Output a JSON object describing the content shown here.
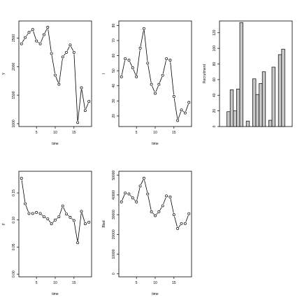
{
  "chart_data": [
    {
      "type": "line",
      "xlabel": "time",
      "ylabel": "Y",
      "x": [
        1,
        2,
        3,
        4,
        5,
        6,
        7,
        8,
        9,
        10,
        11,
        12,
        13,
        14,
        15,
        16,
        17,
        18,
        19
      ],
      "xlim": [
        0.3,
        19.7
      ],
      "xticks": [
        5,
        10,
        15
      ],
      "ylim": [
        950,
        2800
      ],
      "yticks": [
        1000,
        1500,
        2000,
        2500
      ],
      "series": [
        {
          "values": [
            2400,
            2510,
            2600,
            2650,
            2450,
            2400,
            2560,
            2690,
            2230,
            1850,
            1690,
            2170,
            2250,
            2380,
            2250,
            1020,
            1630,
            1230,
            1390
          ]
        }
      ]
    },
    {
      "type": "line",
      "xlabel": "time",
      "ylabel": "I",
      "x": [
        1,
        2,
        3,
        4,
        5,
        6,
        7,
        8,
        9,
        10,
        11,
        12,
        13,
        14,
        15,
        16,
        17,
        18,
        19
      ],
      "xlim": [
        0.3,
        19.7
      ],
      "xticks": [
        5,
        10,
        15
      ],
      "ylim": [
        13,
        83
      ],
      "yticks": [
        20,
        30,
        40,
        50,
        60,
        70,
        80
      ],
      "series": [
        {
          "values": [
            46,
            58,
            57,
            52,
            46,
            65,
            78,
            55,
            41,
            35,
            41,
            47,
            58,
            57,
            33,
            17,
            24,
            22,
            29
          ]
        }
      ]
    },
    {
      "type": "bar",
      "ylabel": "Recruitment",
      "ylim": [
        0,
        135
      ],
      "yticks": [
        0,
        20,
        40,
        60,
        80,
        100,
        120
      ],
      "groups": [
        [
          19,
          47,
          20,
          48,
          133
        ],
        [
          7
        ],
        [
          61,
          41,
          55,
          70
        ],
        [
          8,
          76
        ],
        [
          92,
          99
        ]
      ]
    },
    {
      "type": "line",
      "xlabel": "time",
      "ylabel": "F",
      "x": [
        1,
        2,
        3,
        4,
        5,
        6,
        7,
        8,
        9,
        10,
        11,
        12,
        13,
        14,
        15,
        16,
        17,
        18,
        19
      ],
      "xlim": [
        0.3,
        19.7
      ],
      "xticks": [
        5,
        10,
        15
      ],
      "ylim": [
        -0.005,
        0.19
      ],
      "yticks": [
        0.0,
        0.05,
        0.1,
        0.15
      ],
      "ytick_labels": [
        "0.00",
        "0.05",
        "0.10",
        "0.15"
      ],
      "series": [
        {
          "values": [
            0.177,
            0.13,
            0.112,
            0.112,
            0.114,
            0.112,
            0.106,
            0.102,
            0.093,
            0.1,
            0.106,
            0.126,
            0.111,
            0.105,
            0.099,
            0.058,
            0.116,
            0.093,
            0.096
          ]
        }
      ]
    },
    {
      "type": "line",
      "xlabel": "time",
      "ylabel": "Blad",
      "x": [
        1,
        2,
        3,
        4,
        5,
        6,
        7,
        8,
        9,
        10,
        11,
        12,
        13,
        14,
        15,
        16,
        17,
        18,
        19
      ],
      "xlim": [
        0.3,
        19.7
      ],
      "xticks": [
        5,
        10,
        15
      ],
      "ylim": [
        -1500,
        52000
      ],
      "yticks": [
        0,
        10000,
        20000,
        30000,
        40000,
        50000
      ],
      "series": [
        {
          "values": [
            36500,
            41000,
            40500,
            38500,
            36500,
            44500,
            48500,
            40500,
            31500,
            29500,
            31500,
            34500,
            39500,
            39000,
            30000,
            23000,
            25500,
            25500,
            30500
          ]
        }
      ]
    }
  ]
}
